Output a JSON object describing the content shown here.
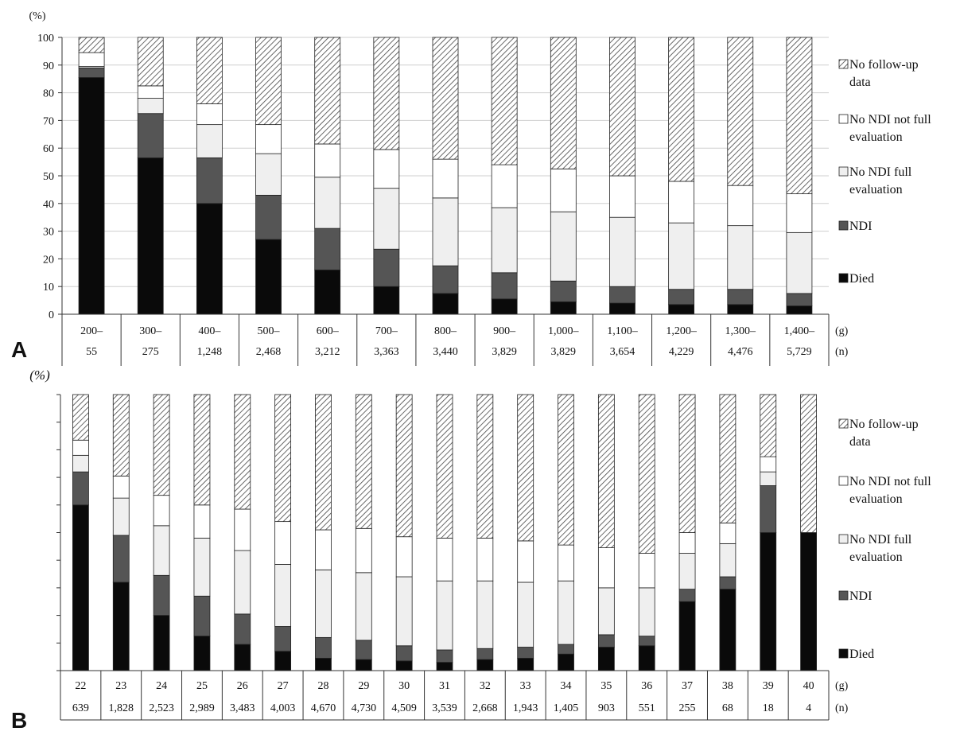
{
  "chart_data": [
    {
      "panel": "A",
      "type": "bar",
      "stacked": true,
      "y_unit": "(%)",
      "ylim": [
        0,
        100
      ],
      "yticks": [
        0,
        10,
        20,
        30,
        40,
        50,
        60,
        70,
        80,
        90,
        100
      ],
      "x_unit": "(g)",
      "n_unit": "(n)",
      "categories": [
        "200–",
        "300–",
        "400–",
        "500–",
        "600–",
        "700–",
        "800–",
        "900–",
        "1,000–",
        "1,100–",
        "1,200–",
        "1,300–",
        "1,400–"
      ],
      "n": [
        "55",
        "275",
        "1,248",
        "2,468",
        "3,212",
        "3,363",
        "3,440",
        "3,829",
        "3,829",
        "3,654",
        "4,229",
        "4,476",
        "5,729"
      ],
      "series": [
        {
          "name": "Died",
          "values": [
            85.5,
            56.5,
            40.0,
            27.0,
            16.0,
            10.0,
            7.5,
            5.5,
            4.5,
            4.0,
            3.5,
            3.5,
            3.0
          ]
        },
        {
          "name": "NDI",
          "values": [
            3.5,
            16.0,
            16.5,
            16.0,
            15.0,
            13.5,
            10.0,
            9.5,
            7.5,
            6.0,
            5.5,
            5.5,
            4.5
          ]
        },
        {
          "name": "No NDI  full evaluation",
          "values": [
            0.5,
            5.5,
            12.0,
            15.0,
            18.5,
            22.0,
            24.5,
            23.5,
            25.0,
            25.0,
            24.0,
            23.0,
            22.0
          ]
        },
        {
          "name": "No NDI not full evaluation",
          "values": [
            5.0,
            4.5,
            7.5,
            10.5,
            12.0,
            14.0,
            14.0,
            15.5,
            15.5,
            15.0,
            15.0,
            14.5,
            14.0
          ]
        },
        {
          "name": "No follow-up data",
          "values": [
            5.5,
            17.5,
            24.0,
            31.5,
            38.5,
            40.5,
            44.0,
            46.0,
            47.5,
            50.0,
            52.0,
            53.5,
            56.5
          ]
        }
      ]
    },
    {
      "panel": "B",
      "type": "bar",
      "stacked": true,
      "y_unit": "(%)",
      "ylim": [
        0,
        100
      ],
      "x_unit": "(g)",
      "n_unit": "(n)",
      "categories": [
        "22",
        "23",
        "24",
        "25",
        "26",
        "27",
        "28",
        "29",
        "30",
        "31",
        "32",
        "33",
        "34",
        "35",
        "36",
        "37",
        "38",
        "39",
        "40"
      ],
      "n": [
        "639",
        "1,828",
        "2,523",
        "2,989",
        "3,483",
        "4,003",
        "4,670",
        "4,730",
        "4,509",
        "3,539",
        "2,668",
        "1,943",
        "1,405",
        "903",
        "551",
        "255",
        "68",
        "18",
        "4"
      ],
      "series": [
        {
          "name": "Died",
          "values": [
            60.0,
            32.0,
            20.0,
            12.5,
            9.5,
            7.0,
            4.5,
            4.0,
            3.5,
            3.0,
            4.0,
            4.5,
            6.0,
            8.5,
            9.0,
            25.0,
            29.5,
            50.0,
            50.0
          ]
        },
        {
          "name": "NDI",
          "values": [
            12.0,
            17.0,
            14.5,
            14.5,
            11.0,
            9.0,
            7.5,
            7.0,
            5.5,
            4.5,
            4.0,
            4.0,
            3.5,
            4.5,
            3.5,
            4.5,
            4.5,
            17.0,
            0
          ]
        },
        {
          "name": "No NDI  full evaluation",
          "values": [
            6.0,
            13.5,
            18.0,
            21.0,
            23.0,
            22.5,
            24.5,
            24.5,
            25.0,
            25.0,
            24.5,
            23.5,
            23.0,
            17.0,
            17.5,
            13.0,
            12.0,
            5.0,
            0
          ]
        },
        {
          "name": "No NDI not full evaluation",
          "values": [
            5.5,
            8.0,
            11.0,
            12.0,
            15.0,
            15.5,
            14.5,
            16.0,
            14.5,
            15.5,
            15.5,
            15.0,
            13.0,
            14.5,
            12.5,
            7.5,
            7.5,
            5.5,
            0
          ]
        },
        {
          "name": "No follow-up data",
          "values": [
            16.5,
            29.5,
            36.5,
            40.0,
            41.5,
            46.0,
            49.0,
            48.5,
            51.5,
            52.0,
            52.0,
            53.0,
            54.5,
            55.5,
            57.5,
            50.0,
            46.5,
            22.5,
            50.0
          ]
        }
      ]
    }
  ],
  "legend": [
    {
      "key": "No follow-up data",
      "line1": "No follow-up",
      "line2": "data",
      "style": "hatch"
    },
    {
      "key": "No NDI not full evaluation",
      "line1": "No NDI not full",
      "line2": "evaluation",
      "style": "white"
    },
    {
      "key": "No NDI  full evaluation",
      "line1": "No NDI  full",
      "line2": "evaluation",
      "style": "light"
    },
    {
      "key": "NDI",
      "line1": "NDI",
      "line2": "",
      "style": "dark"
    },
    {
      "key": "Died",
      "line1": "Died",
      "line2": "",
      "style": "black"
    }
  ],
  "colors": {
    "died": "#0a0a0a",
    "ndi": "#555555",
    "full": "#efefef",
    "notfull": "#ffffff",
    "hatch_line": "#444444",
    "border": "#222222"
  },
  "panel_labels": [
    "A",
    "B"
  ]
}
